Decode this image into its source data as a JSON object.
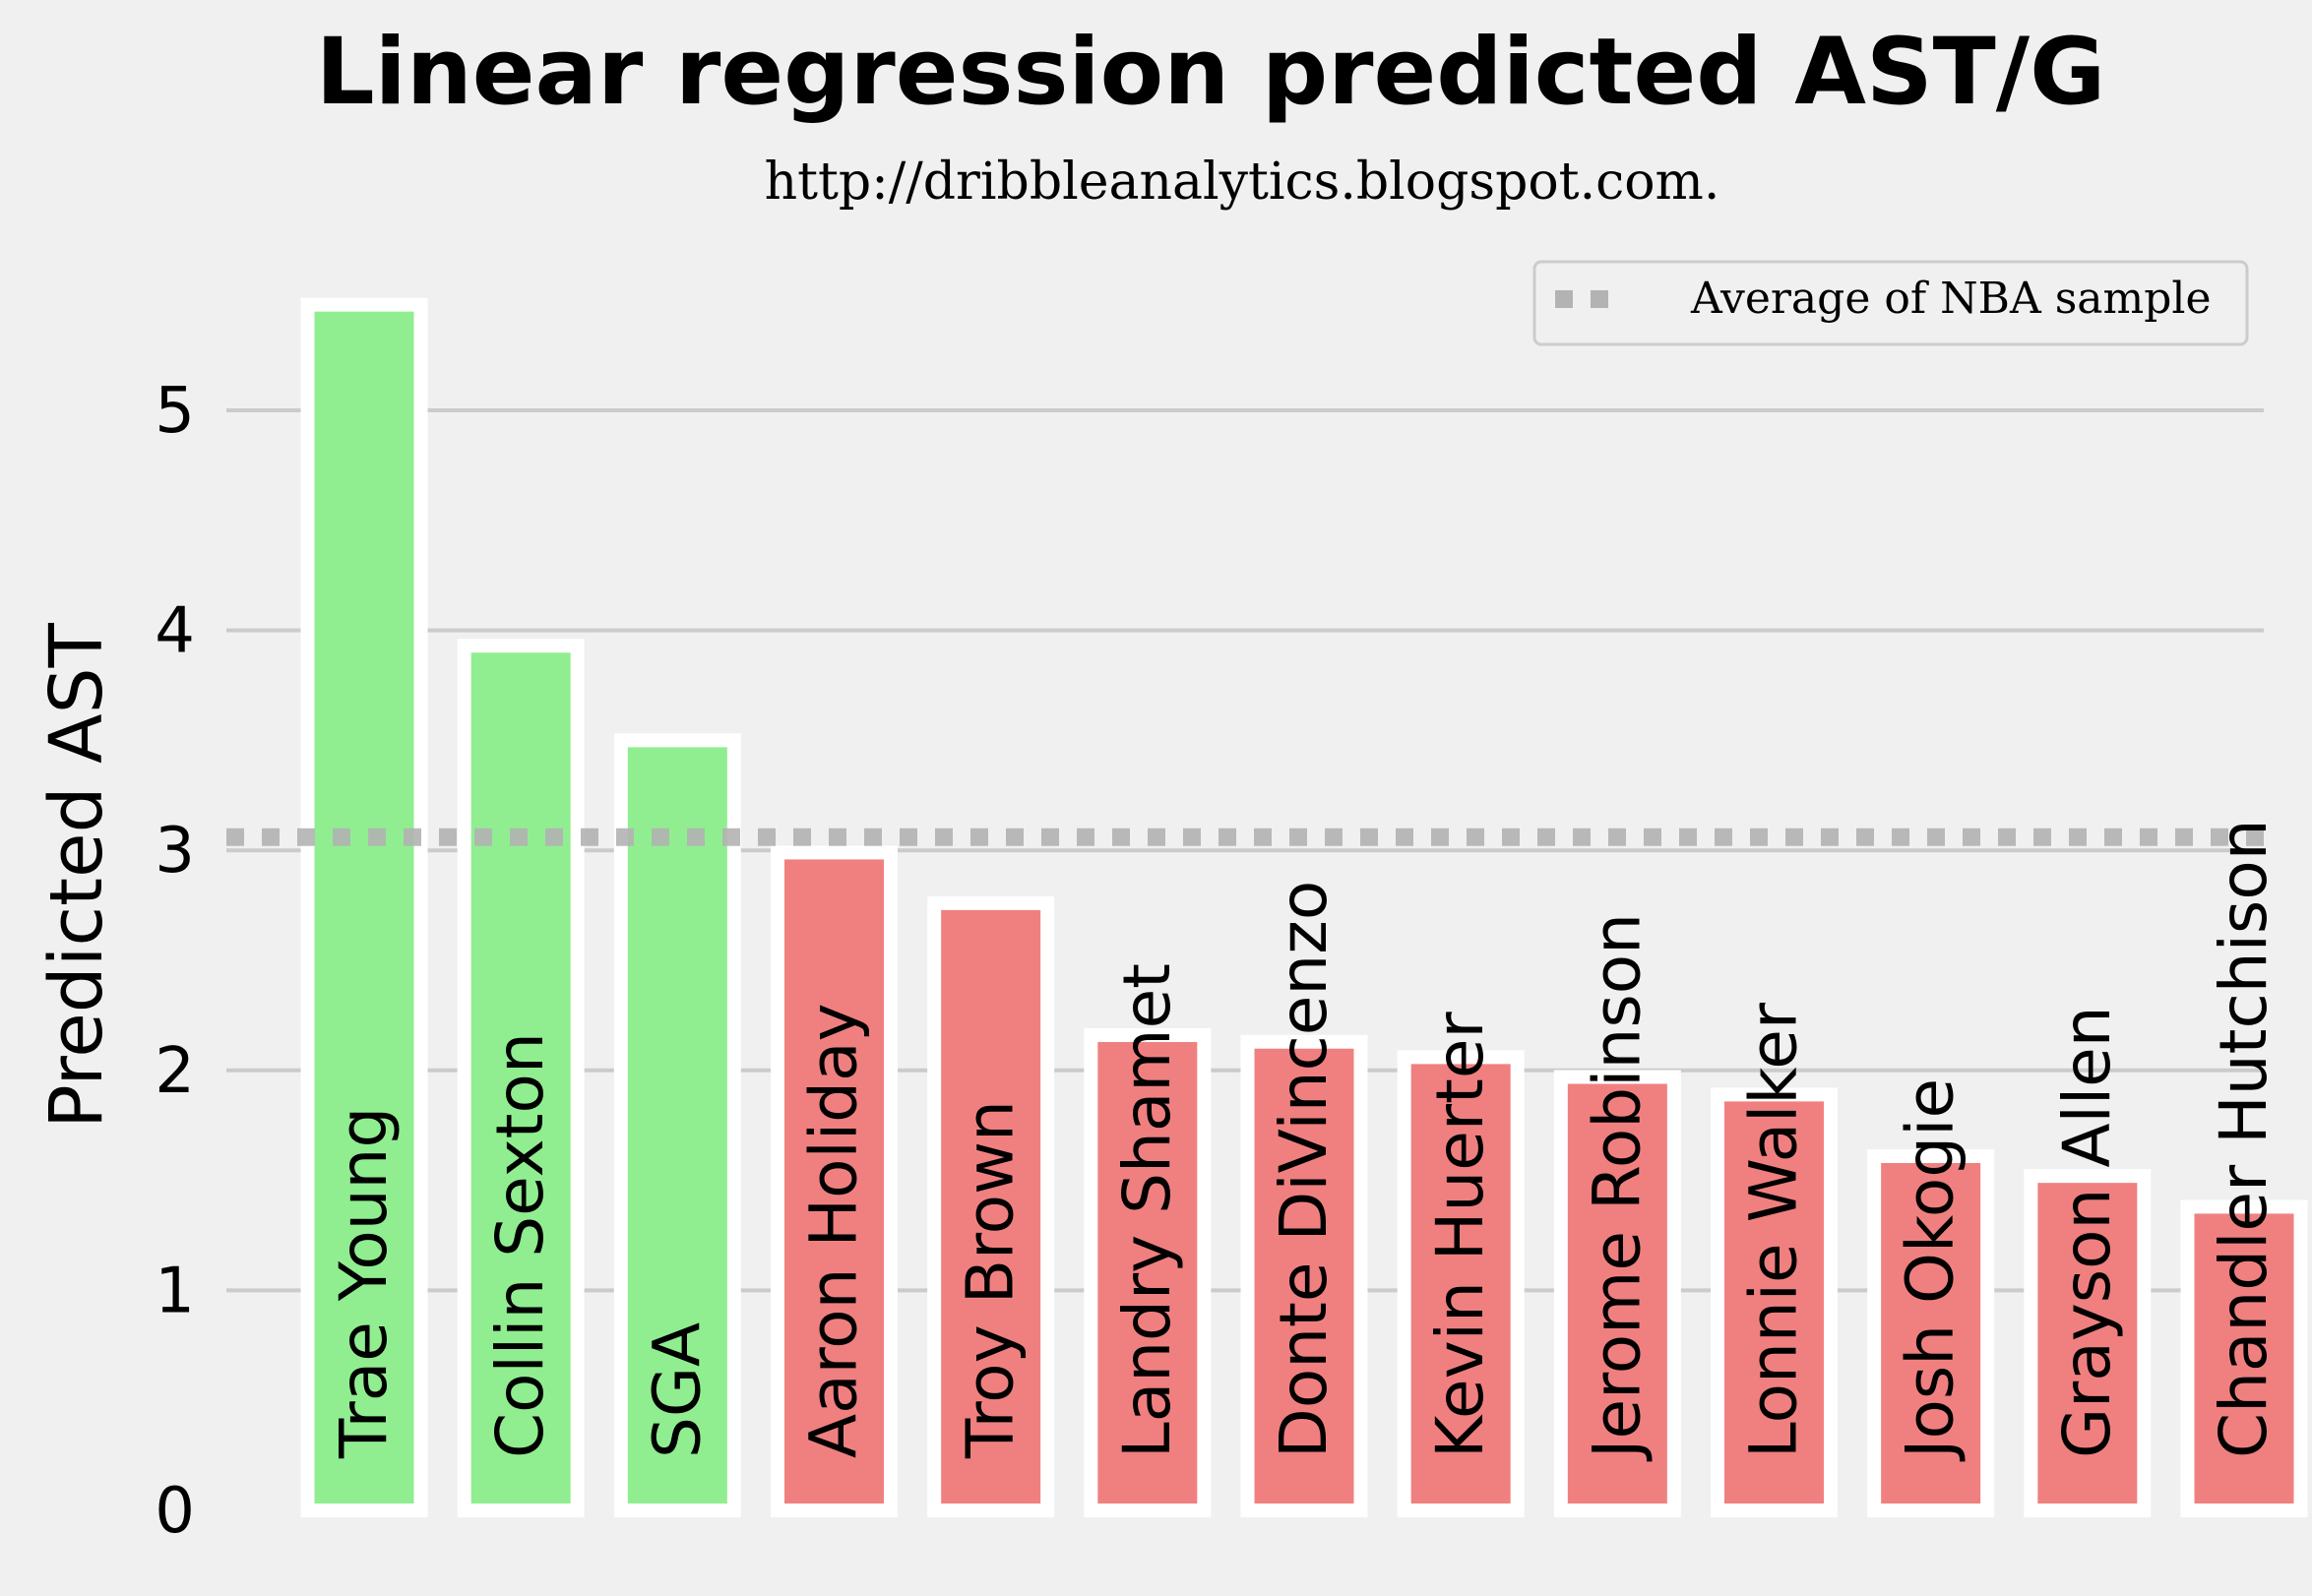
{
  "chart_data": {
    "type": "bar",
    "title": "Linear regression predicted AST/G",
    "subtitle": "http://dribbleanalytics.blogspot.com.",
    "ylabel": "Predicted AST",
    "xlabel": "",
    "ylim": [
      0,
      5.6
    ],
    "yticks": [
      0,
      1,
      2,
      3,
      4,
      5
    ],
    "grid": true,
    "legend_position": "top-right",
    "categories": [
      "Trae Young",
      "Collin Sexton",
      "SGA",
      "Aaron Holiday",
      "Troy Brown",
      "Landry Shamet",
      "Donte DiVincenzo",
      "Kevin Huerter",
      "Jerome Robinson",
      "Lonnie Walker",
      "Josh Okogie",
      "Grayson Allen",
      "Chandler Hutchison"
    ],
    "values": [
      5.48,
      3.93,
      3.5,
      2.99,
      2.76,
      2.16,
      2.13,
      2.06,
      1.97,
      1.89,
      1.61,
      1.52,
      1.38
    ],
    "colors": {
      "above_average": "#90ee90",
      "below_average": "#f08080",
      "average_line": "#b3b3b3",
      "grid": "#cbcbcb",
      "background": "#f0f0f0"
    },
    "reference_line": {
      "label": "Average of NBA sample",
      "value": 3.06
    }
  }
}
